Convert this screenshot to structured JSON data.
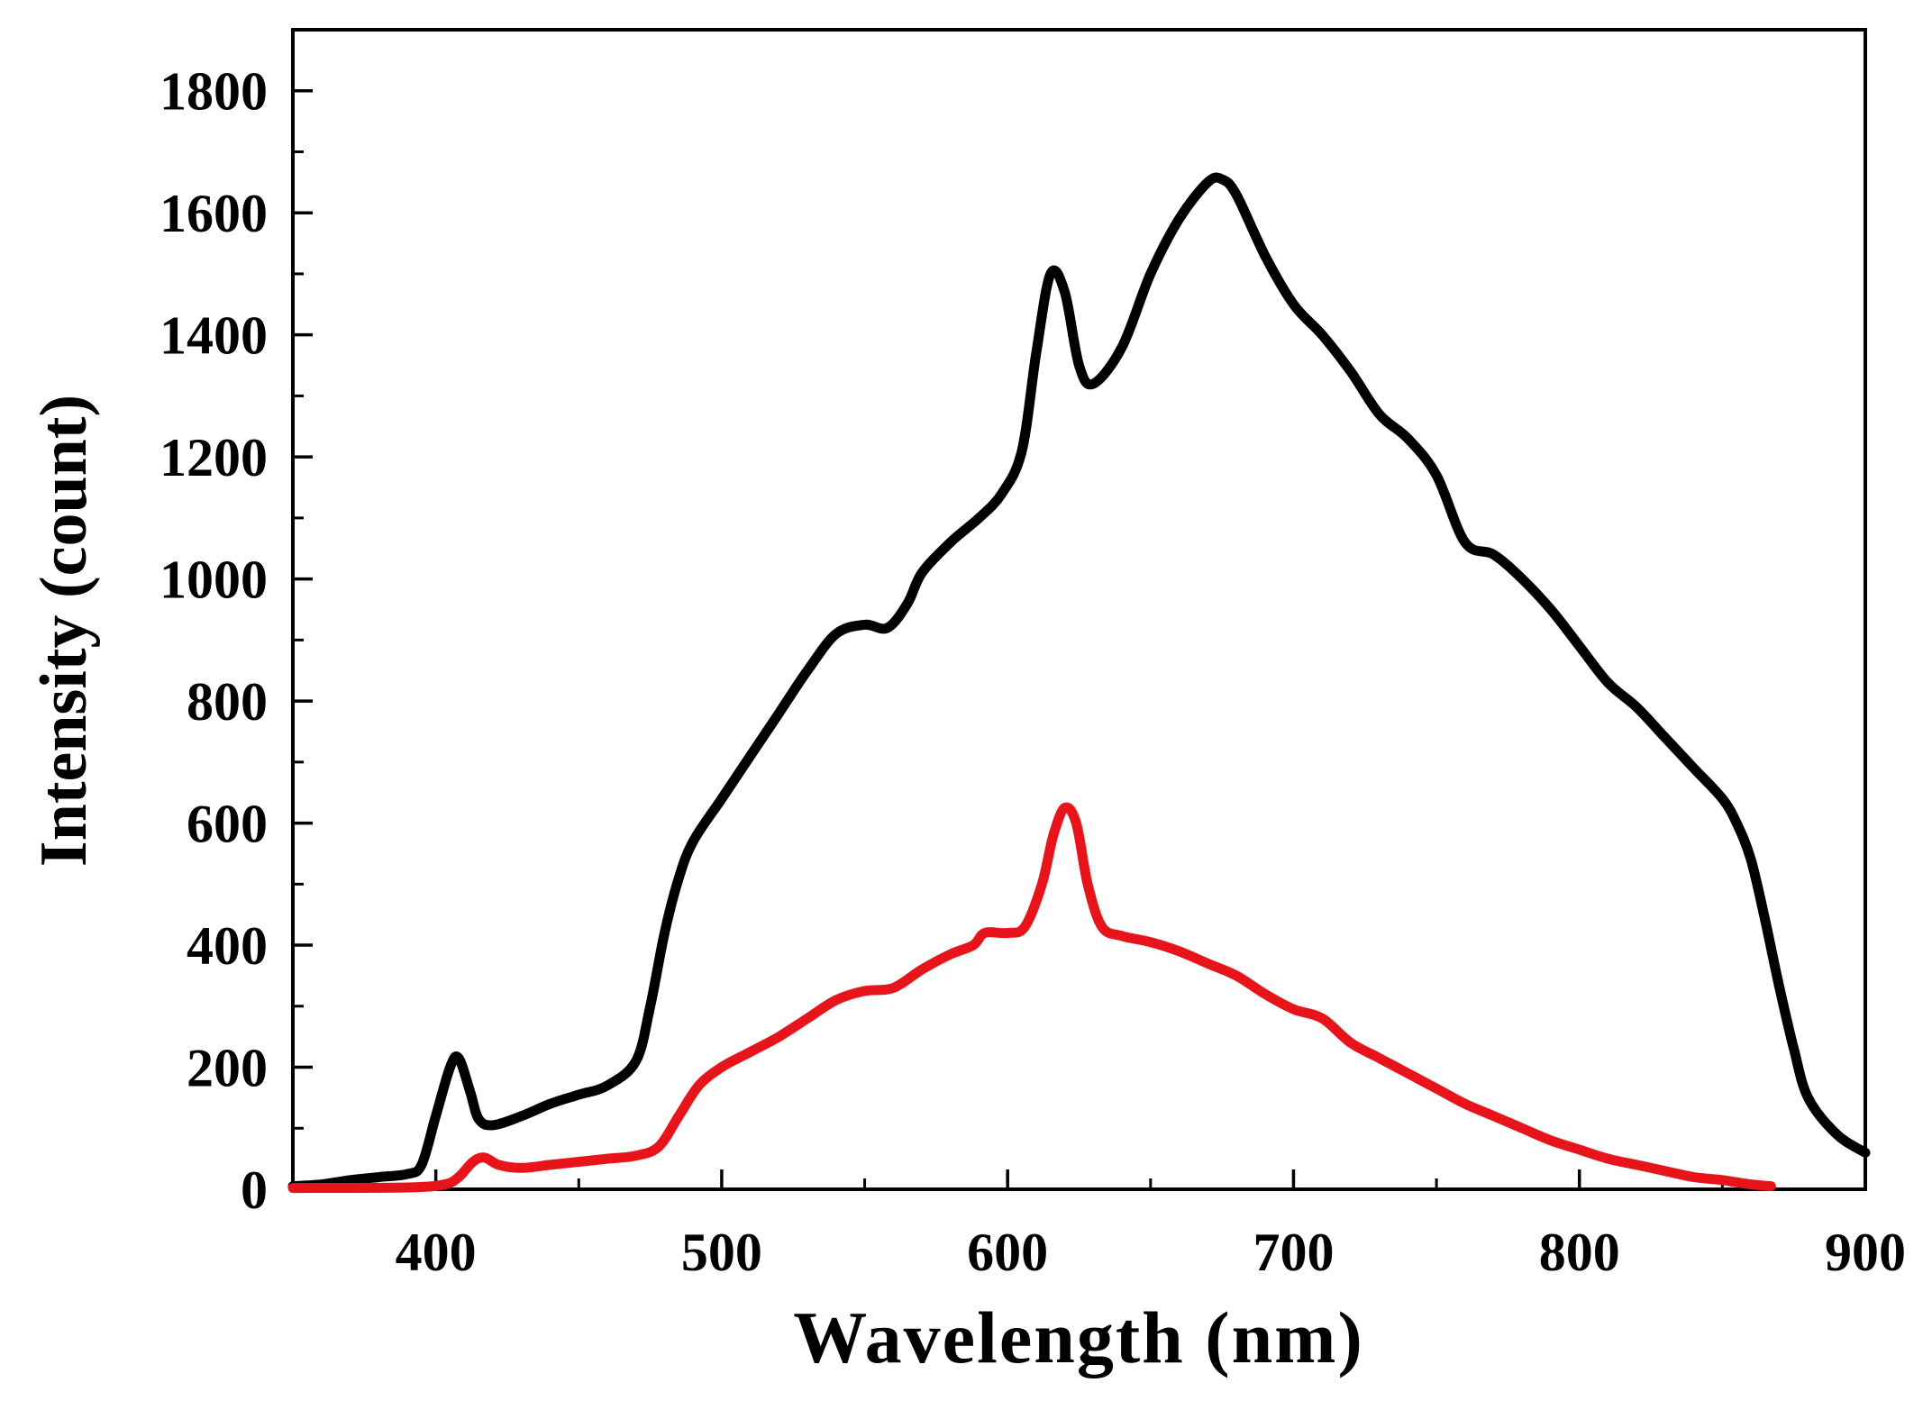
{
  "chart_data": {
    "type": "line",
    "title": "",
    "xlabel": "Wavelength (nm)",
    "ylabel": "Intensity (count)",
    "xlim": [
      350,
      900
    ],
    "ylim": [
      0,
      1900
    ],
    "x_ticks": [
      400,
      500,
      600,
      700,
      800,
      900
    ],
    "y_ticks": [
      0,
      200,
      400,
      600,
      800,
      1000,
      1200,
      1400,
      1600,
      1800
    ],
    "x_minor_step": 50,
    "y_minor_step": 100,
    "grid": false,
    "legend": "none",
    "series": [
      {
        "name": "black spectrum",
        "color": "#000000",
        "points": [
          [
            350,
            5
          ],
          [
            360,
            8
          ],
          [
            370,
            15
          ],
          [
            380,
            20
          ],
          [
            390,
            25
          ],
          [
            395,
            40
          ],
          [
            400,
            120
          ],
          [
            405,
            200
          ],
          [
            408,
            215
          ],
          [
            412,
            160
          ],
          [
            415,
            115
          ],
          [
            420,
            105
          ],
          [
            430,
            120
          ],
          [
            440,
            140
          ],
          [
            450,
            155
          ],
          [
            460,
            170
          ],
          [
            470,
            210
          ],
          [
            475,
            300
          ],
          [
            480,
            420
          ],
          [
            485,
            510
          ],
          [
            490,
            570
          ],
          [
            500,
            640
          ],
          [
            510,
            710
          ],
          [
            520,
            780
          ],
          [
            530,
            850
          ],
          [
            540,
            910
          ],
          [
            550,
            925
          ],
          [
            558,
            920
          ],
          [
            565,
            960
          ],
          [
            570,
            1010
          ],
          [
            580,
            1060
          ],
          [
            590,
            1100
          ],
          [
            598,
            1140
          ],
          [
            605,
            1210
          ],
          [
            610,
            1370
          ],
          [
            615,
            1500
          ],
          [
            620,
            1470
          ],
          [
            625,
            1350
          ],
          [
            630,
            1320
          ],
          [
            640,
            1380
          ],
          [
            650,
            1500
          ],
          [
            660,
            1590
          ],
          [
            670,
            1650
          ],
          [
            675,
            1655
          ],
          [
            680,
            1630
          ],
          [
            690,
            1530
          ],
          [
            700,
            1450
          ],
          [
            710,
            1400
          ],
          [
            720,
            1340
          ],
          [
            730,
            1270
          ],
          [
            740,
            1230
          ],
          [
            750,
            1170
          ],
          [
            760,
            1060
          ],
          [
            770,
            1040
          ],
          [
            780,
            1000
          ],
          [
            790,
            950
          ],
          [
            800,
            890
          ],
          [
            810,
            830
          ],
          [
            820,
            790
          ],
          [
            830,
            740
          ],
          [
            840,
            690
          ],
          [
            850,
            640
          ],
          [
            855,
            600
          ],
          [
            860,
            540
          ],
          [
            865,
            440
          ],
          [
            870,
            330
          ],
          [
            875,
            230
          ],
          [
            880,
            150
          ],
          [
            890,
            90
          ],
          [
            900,
            60
          ]
        ]
      },
      {
        "name": "red spectrum",
        "color": "#e8141b",
        "points": [
          [
            350,
            2
          ],
          [
            390,
            3
          ],
          [
            403,
            8
          ],
          [
            408,
            20
          ],
          [
            413,
            45
          ],
          [
            417,
            52
          ],
          [
            422,
            40
          ],
          [
            430,
            35
          ],
          [
            440,
            40
          ],
          [
            450,
            45
          ],
          [
            460,
            50
          ],
          [
            470,
            55
          ],
          [
            478,
            70
          ],
          [
            485,
            120
          ],
          [
            492,
            170
          ],
          [
            500,
            200
          ],
          [
            510,
            225
          ],
          [
            520,
            250
          ],
          [
            530,
            280
          ],
          [
            540,
            310
          ],
          [
            550,
            325
          ],
          [
            560,
            330
          ],
          [
            570,
            360
          ],
          [
            580,
            385
          ],
          [
            588,
            400
          ],
          [
            592,
            420
          ],
          [
            600,
            420
          ],
          [
            606,
            430
          ],
          [
            612,
            500
          ],
          [
            616,
            580
          ],
          [
            620,
            625
          ],
          [
            624,
            600
          ],
          [
            628,
            500
          ],
          [
            633,
            430
          ],
          [
            640,
            415
          ],
          [
            650,
            405
          ],
          [
            660,
            390
          ],
          [
            670,
            370
          ],
          [
            680,
            350
          ],
          [
            690,
            320
          ],
          [
            700,
            295
          ],
          [
            710,
            280
          ],
          [
            720,
            240
          ],
          [
            730,
            215
          ],
          [
            740,
            190
          ],
          [
            750,
            165
          ],
          [
            760,
            140
          ],
          [
            770,
            120
          ],
          [
            780,
            100
          ],
          [
            790,
            80
          ],
          [
            800,
            65
          ],
          [
            810,
            50
          ],
          [
            820,
            40
          ],
          [
            830,
            30
          ],
          [
            840,
            20
          ],
          [
            850,
            15
          ],
          [
            860,
            8
          ],
          [
            867,
            5
          ]
        ]
      }
    ]
  }
}
